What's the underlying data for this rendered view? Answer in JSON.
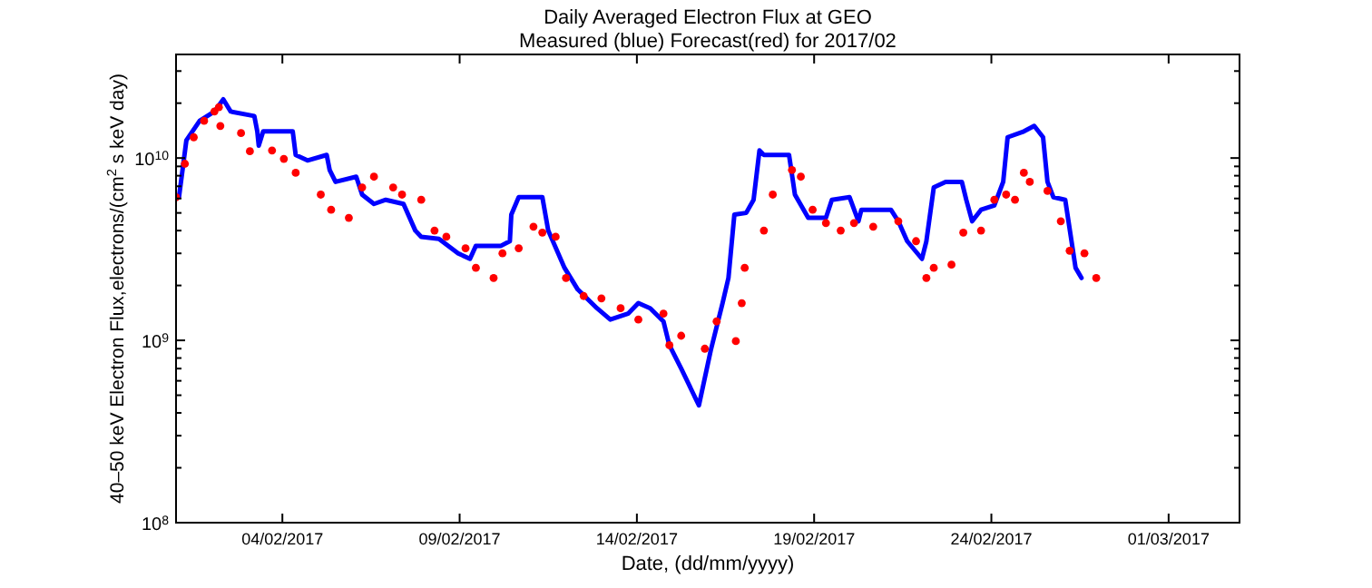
{
  "chart_data": {
    "type": "line",
    "title": "Daily Averaged Electron Flux at GEO",
    "subtitle": "Measured (blue) Forecast(red) for 2017/02",
    "xlabel": "Date, (dd/mm/yyyy)",
    "ylabel": "40–50 keV Electron Flux,electrons/(cm$^{2}$ s keV day)",
    "log": "y",
    "grid": false,
    "xlim": [
      "2017-02-01",
      "2017-03-03"
    ],
    "xticks": [
      {
        "value": "2017-02-04",
        "label": "04/02/2017"
      },
      {
        "value": "2017-02-09",
        "label": "09/02/2017"
      },
      {
        "value": "2017-02-14",
        "label": "14/02/2017"
      },
      {
        "value": "2017-02-19",
        "label": "19/02/2017"
      },
      {
        "value": "2017-02-24",
        "label": "24/02/2017"
      },
      {
        "value": "2017-03-01",
        "label": "01/03/2017"
      }
    ],
    "ylim": [
      100000000,
      37000000000
    ],
    "yticks": [
      {
        "value": 100000000,
        "label": "10$^{8}$"
      },
      {
        "value": 200000000,
        "label": null
      },
      {
        "value": 300000000,
        "label": null
      },
      {
        "value": 400000000,
        "label": null
      },
      {
        "value": 500000000,
        "label": null
      },
      {
        "value": 600000000,
        "label": null
      },
      {
        "value": 700000000,
        "label": null
      },
      {
        "value": 800000000,
        "label": null
      },
      {
        "value": 900000000,
        "label": null
      },
      {
        "value": 1000000000,
        "label": "10$^{9}$"
      },
      {
        "value": 2000000000,
        "label": null
      },
      {
        "value": 3000000000,
        "label": null
      },
      {
        "value": 4000000000,
        "label": null
      },
      {
        "value": 5000000000,
        "label": null
      },
      {
        "value": 6000000000,
        "label": null
      },
      {
        "value": 7000000000,
        "label": null
      },
      {
        "value": 8000000000,
        "label": null
      },
      {
        "value": 9000000000,
        "label": null
      },
      {
        "value": 10000000000,
        "label": "10$^{10}$"
      },
      {
        "value": 20000000000,
        "label": null
      },
      {
        "value": 30000000000,
        "label": null
      }
    ],
    "series": [
      {
        "color": "#0000ff",
        "line_style": "solid",
        "marker": "none",
        "x": [
          "2017-02-01T02:00",
          "2017-02-01T07:00",
          "2017-02-01T16:00",
          "2017-02-02T02:00",
          "2017-02-02T08:00",
          "2017-02-02T13:00",
          "2017-02-03T05:00",
          "2017-02-03T07:00",
          "2017-02-03T08:00",
          "2017-02-03T11:00",
          "2017-02-04T07:00",
          "2017-02-04T09:00",
          "2017-02-04T17:00",
          "2017-02-05T06:00",
          "2017-02-05T08:00",
          "2017-02-05T12:00",
          "2017-02-06T02:00",
          "2017-02-06T06:00",
          "2017-02-06T14:00",
          "2017-02-06T22:00",
          "2017-02-07T10:00",
          "2017-02-07T18:00",
          "2017-02-07T22:00",
          "2017-02-08T10:00",
          "2017-02-08T23:00",
          "2017-02-09T07:00",
          "2017-02-09T11:00",
          "2017-02-10T04:00",
          "2017-02-10T10:00",
          "2017-02-10T11:00",
          "2017-02-10T16:00",
          "2017-02-11T08:00",
          "2017-02-11T12:00",
          "2017-02-11T23:00",
          "2017-02-12T08:00",
          "2017-02-12T21:00",
          "2017-02-13T06:00",
          "2017-02-13T18:00",
          "2017-02-14T01:00",
          "2017-02-14T09:00",
          "2017-02-14T18:00",
          "2017-02-14T22:00",
          "2017-02-15T06:00",
          "2017-02-15T18:00",
          "2017-02-16T02:00",
          "2017-02-16T10:00",
          "2017-02-16T14:00",
          "2017-02-16T18:00",
          "2017-02-17T02:00",
          "2017-02-17T07:00",
          "2017-02-17T11:00",
          "2017-02-17T14:00",
          "2017-02-18T07:00",
          "2017-02-18T11:00",
          "2017-02-18T20:00",
          "2017-02-19T08:00",
          "2017-02-19T12:00",
          "2017-02-20T00:00",
          "2017-02-20T06:00",
          "2017-02-20T08:00",
          "2017-02-21T04:00",
          "2017-02-21T09:00",
          "2017-02-21T15:00",
          "2017-02-22T01:00",
          "2017-02-22T04:00",
          "2017-02-22T09:00",
          "2017-02-22T17:00",
          "2017-02-23T04:00",
          "2017-02-23T07:00",
          "2017-02-23T11:00",
          "2017-02-23T17:00",
          "2017-02-24T02:00",
          "2017-02-24T08:00",
          "2017-02-24T11:00",
          "2017-02-24T22:00",
          "2017-02-25T05:00",
          "2017-02-25T11:00",
          "2017-02-25T14:00",
          "2017-02-25T18:00",
          "2017-02-26T02:00",
          "2017-02-26T09:00",
          "2017-02-26T13:00"
        ],
        "values": [
          6100000000,
          12500000000,
          16000000000,
          18000000000,
          21000000000,
          18000000000,
          17000000000,
          14000000000,
          11700000000,
          14000000000,
          14000000000,
          10400000000,
          9700000000,
          10400000000,
          8600000000,
          7400000000,
          7900000000,
          6300000000,
          5600000000,
          5900000000,
          5600000000,
          4000000000,
          3700000000,
          3600000000,
          3000000000,
          2800000000,
          3300000000,
          3300000000,
          3500000000,
          4900000000,
          6100000000,
          6100000000,
          4000000000,
          2500000000,
          1900000000,
          1500000000,
          1300000000,
          1400000000,
          1600000000,
          1500000000,
          1270000000,
          940000000,
          700000000,
          440000000,
          880000000,
          1600000000,
          2200000000,
          4900000000,
          5000000000,
          5900000000,
          11000000000,
          10400000000,
          10400000000,
          6300000000,
          4700000000,
          4700000000,
          5900000000,
          6100000000,
          4500000000,
          5200000000,
          5200000000,
          4500000000,
          3500000000,
          2800000000,
          3500000000,
          6900000000,
          7400000000,
          7400000000,
          5900000000,
          4500000000,
          5200000000,
          5500000000,
          7400000000,
          13000000000,
          14000000000,
          15000000000,
          13000000000,
          7400000000,
          6100000000,
          5900000000,
          2500000000,
          2200000000
        ]
      },
      {
        "type": "scatter",
        "color": "#ff0000",
        "marker": "circle",
        "x": [
          "2017-02-01T00:00",
          "2017-02-01T06:00",
          "2017-02-01T12:00",
          "2017-02-01T19:00",
          "2017-02-02T02:00",
          "2017-02-02T05:00",
          "2017-02-02T06:00",
          "2017-02-02T20:00",
          "2017-02-03T02:00",
          "2017-02-03T17:00",
          "2017-02-04T01:00",
          "2017-02-04T09:00",
          "2017-02-05T02:00",
          "2017-02-05T09:00",
          "2017-02-05T21:00",
          "2017-02-06T06:00",
          "2017-02-06T14:00",
          "2017-02-07T03:00",
          "2017-02-07T09:00",
          "2017-02-07T22:00",
          "2017-02-08T07:00",
          "2017-02-08T15:00",
          "2017-02-09T04:00",
          "2017-02-09T11:00",
          "2017-02-09T23:00",
          "2017-02-10T05:00",
          "2017-02-10T16:00",
          "2017-02-11T02:00",
          "2017-02-11T08:00",
          "2017-02-11T17:00",
          "2017-02-12T00:00",
          "2017-02-12T12:00",
          "2017-02-13T00:00",
          "2017-02-13T13:00",
          "2017-02-14T01:00",
          "2017-02-14T18:00",
          "2017-02-14T22:00",
          "2017-02-15T06:00",
          "2017-02-15T22:00",
          "2017-02-16T06:00",
          "2017-02-16T19:00",
          "2017-02-16T23:00",
          "2017-02-17T01:00",
          "2017-02-17T14:00",
          "2017-02-17T20:00",
          "2017-02-18T09:00",
          "2017-02-18T15:00",
          "2017-02-18T23:00",
          "2017-02-19T08:00",
          "2017-02-19T18:00",
          "2017-02-20T03:00",
          "2017-02-20T16:00",
          "2017-02-21T09:00",
          "2017-02-21T21:00",
          "2017-02-22T04:00",
          "2017-02-22T09:00",
          "2017-02-22T21:00",
          "2017-02-23T05:00",
          "2017-02-23T17:00",
          "2017-02-24T02:00",
          "2017-02-24T10:00",
          "2017-02-24T16:00",
          "2017-02-24T22:00",
          "2017-02-25T02:00",
          "2017-02-25T14:00",
          "2017-02-25T23:00",
          "2017-02-26T05:00",
          "2017-02-26T15:00",
          "2017-02-26T23:00"
        ],
        "values": [
          6100000000,
          9300000000,
          13000000000,
          16000000000,
          18000000000,
          19000000000,
          15000000000,
          13700000000,
          10900000000,
          11000000000,
          9900000000,
          8300000000,
          6300000000,
          5200000000,
          4700000000,
          6900000000,
          7900000000,
          6900000000,
          6300000000,
          5900000000,
          4000000000,
          3700000000,
          3200000000,
          2500000000,
          2200000000,
          3000000000,
          3200000000,
          4200000000,
          3900000000,
          3700000000,
          2200000000,
          1750000000,
          1700000000,
          1500000000,
          1300000000,
          1400000000,
          940000000,
          1060000000,
          900000000,
          1270000000,
          990000000,
          1600000000,
          2500000000,
          4000000000,
          6300000000,
          8600000000,
          7900000000,
          5200000000,
          4400000000,
          4000000000,
          4400000000,
          4200000000,
          4500000000,
          3500000000,
          2200000000,
          2500000000,
          2600000000,
          3900000000,
          4000000000,
          5900000000,
          6300000000,
          5900000000,
          8300000000,
          7400000000,
          6600000000,
          4500000000,
          3100000000,
          3000000000,
          2200000000
        ]
      }
    ]
  }
}
